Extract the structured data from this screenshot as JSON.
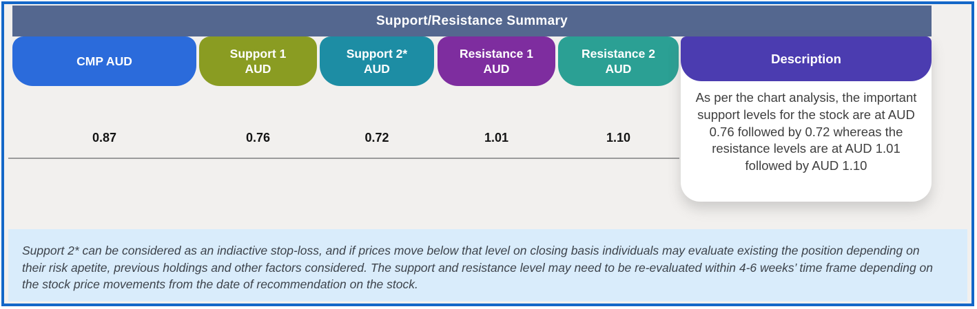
{
  "table": {
    "title": "Support/Resistance Summary",
    "columns": [
      {
        "line1": "CMP AUD",
        "line2": "",
        "value": "0.87",
        "color": "#2b6bdb"
      },
      {
        "line1": "Support 1",
        "line2": "AUD",
        "value": "0.76",
        "color": "#8a9c22"
      },
      {
        "line1": "Support 2*",
        "line2": "AUD",
        "value": "0.72",
        "color": "#1d8da4"
      },
      {
        "line1": "Resistance 1",
        "line2": "AUD",
        "value": "1.01",
        "color": "#7e2d9f"
      },
      {
        "line1": "Resistance 2",
        "line2": "AUD",
        "value": "1.10",
        "color": "#2ba094"
      }
    ],
    "description": {
      "label": "Description",
      "color": "#4b3cb0",
      "text": "As per the chart analysis, the important support levels for the stock are at AUD 0.76 followed by 0.72 whereas the resistance levels are at AUD 1.01 followed by AUD 1.10"
    }
  },
  "footnote": {
    "text": "Support 2* can be considered as an indiactive stop-loss, and if prices move below that level on closing basis individuals may evaluate existing the position depending on their risk apetite, previous holdings and other factors considered. The support and resistance level may need to be re-evaluated within 4-6 weeks’ time frame depending on the stock price movements from  the date of recommendation on the stock."
  },
  "colors": {
    "frame_border": "#1467c8",
    "header_bar": "#54678f",
    "footnote_bg": "#d9ecfb"
  }
}
